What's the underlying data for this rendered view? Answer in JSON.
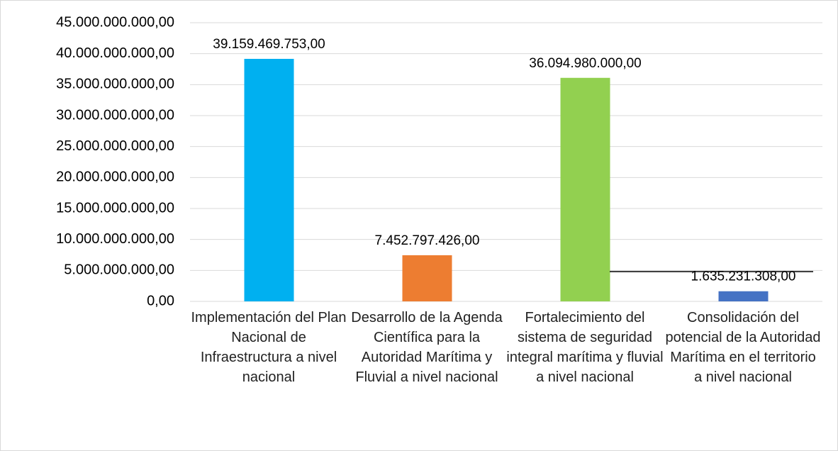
{
  "chart_data": {
    "type": "bar",
    "categories": [
      "Implementación del Plan Nacional de Infraestructura a nivel nacional",
      "Desarrollo de la Agenda Científica para la Autoridad Marítima y Fluvial a nivel nacional",
      "Fortalecimiento del sistema de seguridad integral marítima y fluvial a nivel nacional",
      "Consolidación del potencial de la Autoridad Marítima en el territorio a nivel nacional"
    ],
    "values": [
      39159469753,
      7452797426,
      36094980000,
      1635231308
    ],
    "value_labels": [
      "39.159.469.753,00",
      "7.452.797.426,00",
      "36.094.980.000,00",
      "1.635.231.308,00"
    ],
    "colors": [
      "#00b0f0",
      "#ed7d31",
      "#92d050",
      "#4472c4"
    ],
    "ylim": [
      0,
      45000000000
    ],
    "yticks": [
      {
        "value": 0,
        "label": "0,00"
      },
      {
        "value": 5000000000,
        "label": "5.000.000.000,00"
      },
      {
        "value": 10000000000,
        "label": "10.000.000.000,00"
      },
      {
        "value": 15000000000,
        "label": "15.000.000.000,00"
      },
      {
        "value": 20000000000,
        "label": "20.000.000.000,00"
      },
      {
        "value": 25000000000,
        "label": "25.000.000.000,00"
      },
      {
        "value": 30000000000,
        "label": "30.000.000.000,00"
      },
      {
        "value": 35000000000,
        "label": "35.000.000.000,00"
      },
      {
        "value": 40000000000,
        "label": "40.000.000.000,00"
      },
      {
        "value": 45000000000,
        "label": "45.000.000.000,00"
      }
    ],
    "grid": true
  }
}
